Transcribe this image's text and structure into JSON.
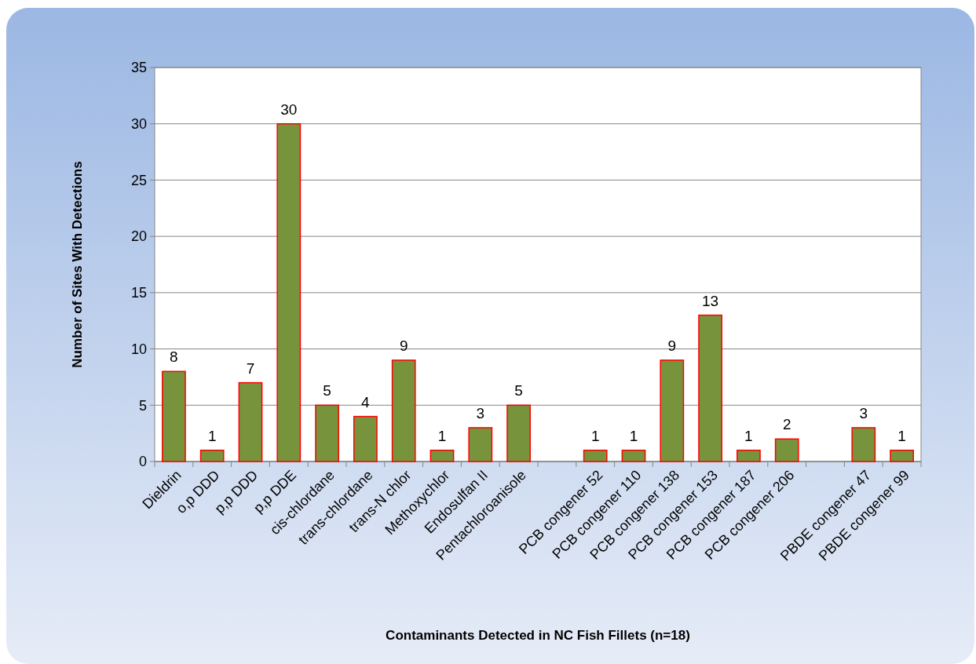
{
  "chart_data": {
    "type": "bar",
    "xlabel": "Contaminants Detected in NC Fish Fillets (n=18)",
    "ylabel": "Number of Sites With Detections",
    "categories": [
      "Dieldrin",
      "o,p DDD",
      "p,p DDD",
      "p,p DDE",
      "cis-chlordane",
      "trans-chlordane",
      "trans-N chlor",
      "Methoxychlor",
      "Endosulfan II",
      "Pentachloroanisole",
      null,
      "PCB congener 52",
      "PCB congener 110",
      "PCB congener 138",
      "PCB congener 153",
      "PCB congener 187",
      "PCB congener 206",
      null,
      "PBDE congener 47",
      "PBDE congener 99"
    ],
    "values": [
      8,
      1,
      7,
      30,
      5,
      4,
      9,
      1,
      3,
      5,
      null,
      1,
      1,
      9,
      13,
      1,
      2,
      null,
      3,
      1
    ],
    "color": "#77933c",
    "ylim": [
      0,
      35
    ],
    "yticks": [
      0,
      5,
      10,
      15,
      20,
      25,
      30,
      35
    ],
    "grid": "y",
    "data_labels": true
  }
}
